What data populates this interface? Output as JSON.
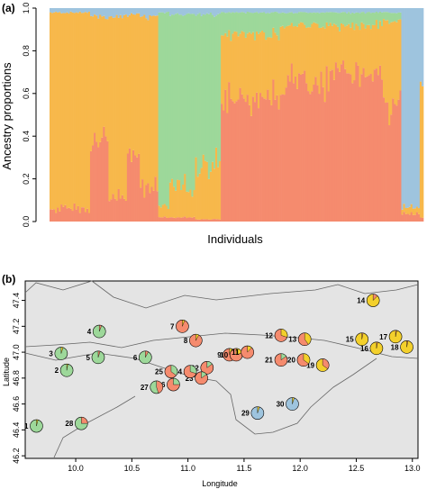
{
  "colors": {
    "orange": "#f7b84b",
    "green": "#9dd89a",
    "red": "#f58b6e",
    "blue": "#9ec4de",
    "yellow": "#f3d02c",
    "map_bg": "#e4e4e4"
  },
  "chart_data": [
    {
      "type": "bar",
      "panel_label": "(a)",
      "xlabel": "Individuals",
      "ylabel": "Ancestry proportions",
      "ylim": [
        0,
        1
      ],
      "yticks": [
        "0.0",
        "0.2",
        "0.4",
        "0.6",
        "0.8",
        "1.0"
      ],
      "stacked": true,
      "component_colors": [
        "red",
        "orange",
        "green",
        "blue"
      ],
      "segments": [
        {
          "n": 22,
          "red": 0.06,
          "orange": 0.92,
          "green": 0.0,
          "blue": 0.02
        },
        {
          "n": 10,
          "red": 0.4,
          "orange": 0.56,
          "green": 0.0,
          "blue": 0.04
        },
        {
          "n": 10,
          "red": 0.1,
          "orange": 0.86,
          "green": 0.0,
          "blue": 0.04
        },
        {
          "n": 7,
          "red": 0.34,
          "orange": 0.63,
          "green": 0.0,
          "blue": 0.03
        },
        {
          "n": 10,
          "red": 0.15,
          "orange": 0.81,
          "green": 0.0,
          "blue": 0.04
        },
        {
          "n": 6,
          "red": 0.02,
          "orange": 0.05,
          "green": 0.91,
          "blue": 0.02
        },
        {
          "n": 14,
          "red": 0.02,
          "orange": 0.15,
          "green": 0.8,
          "blue": 0.03
        },
        {
          "n": 14,
          "red": 0.01,
          "orange": 0.25,
          "green": 0.71,
          "blue": 0.03
        },
        {
          "n": 32,
          "red": 0.58,
          "orange": 0.3,
          "green": 0.1,
          "blue": 0.02
        },
        {
          "n": 30,
          "red": 0.66,
          "orange": 0.26,
          "green": 0.06,
          "blue": 0.02
        },
        {
          "n": 26,
          "red": 0.7,
          "orange": 0.22,
          "green": 0.06,
          "blue": 0.02
        },
        {
          "n": 10,
          "red": 0.55,
          "orange": 0.39,
          "green": 0.04,
          "blue": 0.02
        },
        {
          "n": 10,
          "red": 0.04,
          "orange": 0.03,
          "green": 0.0,
          "blue": 0.93
        },
        {
          "n": 2,
          "red": 0.02,
          "orange": 0.6,
          "green": 0.0,
          "blue": 0.38
        }
      ]
    },
    {
      "type": "scatter",
      "panel_label": "(b)",
      "xlabel": "Longitude",
      "ylabel": "Latitude",
      "xlim": [
        9.55,
        13.05
      ],
      "ylim": [
        46.18,
        47.55
      ],
      "xticks": [
        "10.0",
        "10.5",
        "11.0",
        "11.5",
        "12.0",
        "12.5",
        "13.0"
      ],
      "yticks": [
        "46.2",
        "46.4",
        "46.6",
        "46.8",
        "47.0",
        "47.2",
        "47.4"
      ],
      "marker": "pie",
      "sites": [
        {
          "id": "1",
          "lon": 9.65,
          "lat": 46.43,
          "base": "green",
          "slices": [
            {
              "c": "yellow",
              "v": 0.04
            }
          ]
        },
        {
          "id": "2",
          "lon": 9.92,
          "lat": 46.86,
          "base": "green",
          "slices": [
            {
              "c": "yellow",
              "v": 0.03
            }
          ]
        },
        {
          "id": "3",
          "lon": 9.87,
          "lat": 46.99,
          "base": "green",
          "slices": [
            {
              "c": "yellow",
              "v": 0.05
            }
          ]
        },
        {
          "id": "4",
          "lon": 10.21,
          "lat": 47.16,
          "base": "green",
          "slices": [
            {
              "c": "red",
              "v": 0.06
            }
          ]
        },
        {
          "id": "5",
          "lon": 10.2,
          "lat": 46.96,
          "base": "green",
          "slices": [
            {
              "c": "red",
              "v": 0.05
            }
          ]
        },
        {
          "id": "6",
          "lon": 10.62,
          "lat": 46.96,
          "base": "green",
          "slices": [
            {
              "c": "red",
              "v": 0.08
            }
          ]
        },
        {
          "id": "7",
          "lon": 10.95,
          "lat": 47.2,
          "base": "red",
          "slices": [
            {
              "c": "yellow",
              "v": 0.06
            }
          ]
        },
        {
          "id": "8",
          "lon": 11.07,
          "lat": 47.09,
          "base": "red",
          "slices": [
            {
              "c": "yellow",
              "v": 0.08
            }
          ]
        },
        {
          "id": "9",
          "lon": 11.37,
          "lat": 46.98,
          "base": "red",
          "slices": [
            {
              "c": "yellow",
              "v": 0.3
            }
          ]
        },
        {
          "id": "10",
          "lon": 11.43,
          "lat": 46.98,
          "base": "red",
          "slices": [
            {
              "c": "yellow",
              "v": 0.2
            }
          ]
        },
        {
          "id": "11",
          "lon": 11.53,
          "lat": 47.0,
          "base": "red",
          "slices": [
            {
              "c": "yellow",
              "v": 0.12
            }
          ]
        },
        {
          "id": "12",
          "lon": 11.83,
          "lat": 47.13,
          "base": "red",
          "slices": [
            {
              "c": "yellow",
              "v": 0.3
            }
          ]
        },
        {
          "id": "13",
          "lon": 12.04,
          "lat": 47.1,
          "base": "red",
          "slices": [
            {
              "c": "yellow",
              "v": 0.4
            }
          ]
        },
        {
          "id": "14",
          "lon": 12.65,
          "lat": 47.4,
          "base": "yellow",
          "slices": [
            {
              "c": "red",
              "v": 0.12
            }
          ]
        },
        {
          "id": "15",
          "lon": 12.55,
          "lat": 47.1,
          "base": "yellow",
          "slices": [
            {
              "c": "red",
              "v": 0.03
            }
          ]
        },
        {
          "id": "16",
          "lon": 12.68,
          "lat": 47.03,
          "base": "yellow",
          "slices": [
            {
              "c": "red",
              "v": 0.03
            }
          ]
        },
        {
          "id": "17",
          "lon": 12.85,
          "lat": 47.12,
          "base": "yellow",
          "slices": [
            {
              "c": "red",
              "v": 0.03
            }
          ]
        },
        {
          "id": "18",
          "lon": 12.95,
          "lat": 47.04,
          "base": "yellow",
          "slices": [
            {
              "c": "red",
              "v": 0.03
            }
          ]
        },
        {
          "id": "19",
          "lon": 12.2,
          "lat": 46.9,
          "base": "yellow",
          "slices": [
            {
              "c": "red",
              "v": 0.35
            }
          ]
        },
        {
          "id": "20",
          "lon": 12.03,
          "lat": 46.94,
          "base": "red",
          "slices": [
            {
              "c": "yellow",
              "v": 0.35
            }
          ]
        },
        {
          "id": "21",
          "lon": 11.83,
          "lat": 46.94,
          "base": "red",
          "slices": [
            {
              "c": "green",
              "v": 0.15
            }
          ]
        },
        {
          "id": "22",
          "lon": 11.17,
          "lat": 46.88,
          "base": "red",
          "slices": [
            {
              "c": "green",
              "v": 0.15
            }
          ]
        },
        {
          "id": "23",
          "lon": 11.12,
          "lat": 46.8,
          "base": "red",
          "slices": [
            {
              "c": "green",
              "v": 0.15
            }
          ]
        },
        {
          "id": "24",
          "lon": 11.02,
          "lat": 46.85,
          "base": "red",
          "slices": [
            {
              "c": "green",
              "v": 0.3
            }
          ]
        },
        {
          "id": "25",
          "lon": 10.85,
          "lat": 46.85,
          "base": "red",
          "slices": [
            {
              "c": "green",
              "v": 0.35
            }
          ]
        },
        {
          "id": "26",
          "lon": 10.87,
          "lat": 46.75,
          "base": "red",
          "slices": [
            {
              "c": "green",
              "v": 0.25
            }
          ]
        },
        {
          "id": "27",
          "lon": 10.72,
          "lat": 46.73,
          "base": "green",
          "slices": [
            {
              "c": "red",
              "v": 0.45
            }
          ]
        },
        {
          "id": "28",
          "lon": 10.05,
          "lat": 46.45,
          "base": "green",
          "slices": [
            {
              "c": "red",
              "v": 0.25
            }
          ]
        },
        {
          "id": "29",
          "lon": 11.62,
          "lat": 46.53,
          "base": "blue",
          "slices": [
            {
              "c": "yellow",
              "v": 0.05
            }
          ]
        },
        {
          "id": "30",
          "lon": 11.93,
          "lat": 46.6,
          "base": "blue",
          "slices": [
            {
              "c": "yellow",
              "v": 0.05
            }
          ]
        }
      ]
    }
  ]
}
